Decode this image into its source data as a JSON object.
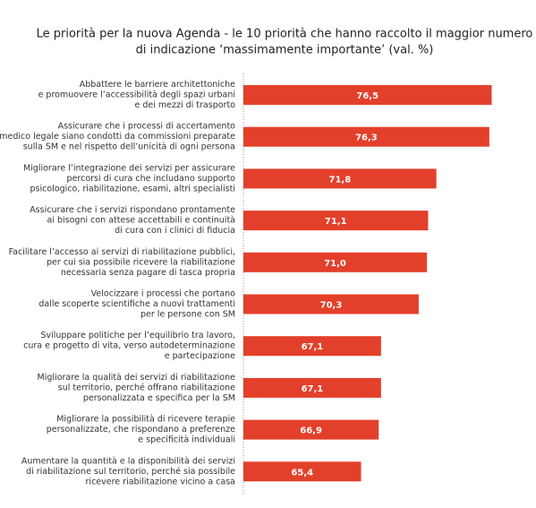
{
  "chart_data": {
    "type": "bar",
    "orientation": "horizontal",
    "title": [
      "Le priorità per la nuova Agenda - le 10 priorità che hanno raccolto il maggior numero",
      "di indicazione ‘massimamente importante’ (val. %)"
    ],
    "categories": [
      [
        "Abbattere le barriere architettoniche",
        "e promuovere l’accessibilità degli spazi urbani",
        "e dei mezzi di trasporto"
      ],
      [
        "Assicurare che i processi di accertamento",
        "medico legale siano condotti da commissioni preparate",
        "sulla SM e nel rispetto dell’unicità di ogni persona"
      ],
      [
        "Migliorare l’integrazione dei servizi per assicurare",
        "percorsi di cura che includano supporto",
        "psicologico, riabilitazione, esami, altri specialisti"
      ],
      [
        "Assicurare che i servizi rispondano prontamente",
        "ai bisogni con attese accettabili e continuità",
        "di cura con i clinici di fiducia"
      ],
      [
        "Facilitare l’accesso ai servizi di riabilitazione pubblici,",
        "per cui sia possibile ricevere la riabilitazione",
        "necessaria senza pagare di tasca propria"
      ],
      [
        "Velocizzare i processi che portano",
        "dalle scoperte scientifiche a nuovi trattamenti",
        "per le persone con SM"
      ],
      [
        "Sviluppare politiche per l’equilibrio tra lavoro,",
        "cura e progetto di vita, verso autodeterminazione",
        "e partecipazione"
      ],
      [
        "Migliorare la qualità dei servizi di riabilitazione",
        "sul territorio, perché offrano riabilitazione",
        "personalizzata e specifica per la SM"
      ],
      [
        "Migliorare la possibilità di ricevere terapie",
        "personalizzate, che rispondano a preferenze",
        "e specificità individuali"
      ],
      [
        "Aumentare la quantità e la disponibilità dei servizi",
        "di riabilitazione sul territorio, perché sia possibile",
        "ricevere riabilitazione vicino a casa"
      ]
    ],
    "values": [
      76.5,
      76.3,
      71.8,
      71.1,
      71.0,
      70.3,
      67.1,
      67.1,
      66.9,
      65.4
    ],
    "value_labels": [
      "76,5",
      "76,3",
      "71,8",
      "71,1",
      "71,0",
      "70,3",
      "67,1",
      "67,1",
      "66,9",
      "65,4"
    ],
    "color": "#e3402b",
    "xlim": [
      55.4,
      77.3
    ]
  }
}
